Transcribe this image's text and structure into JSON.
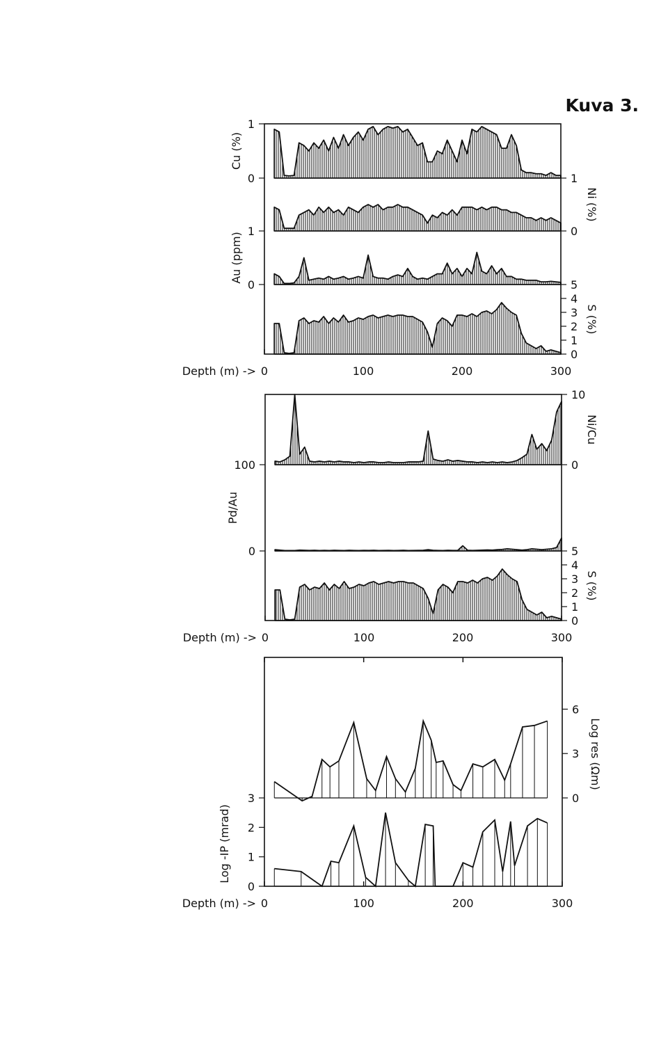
{
  "title": "Kuva 3.",
  "chart_data": [
    {
      "type": "area",
      "xlabel": "Depth (m) ->",
      "xlim": [
        0,
        300
      ],
      "xticks": [
        0,
        100,
        200,
        300
      ],
      "x": [
        10,
        15,
        20,
        25,
        30,
        35,
        40,
        45,
        50,
        55,
        60,
        65,
        70,
        75,
        80,
        85,
        90,
        95,
        100,
        105,
        110,
        115,
        120,
        125,
        130,
        135,
        140,
        145,
        150,
        155,
        160,
        165,
        170,
        175,
        180,
        185,
        190,
        195,
        200,
        205,
        210,
        215,
        220,
        225,
        230,
        235,
        240,
        245,
        250,
        255,
        260,
        265,
        270,
        275,
        280,
        285,
        290,
        295,
        300
      ],
      "series": [
        {
          "name": "Cu (%)",
          "color": "#111111",
          "ylim": [
            0,
            1
          ],
          "yticks": [
            0,
            1
          ],
          "values": [
            0.9,
            0.85,
            0.05,
            0.04,
            0.05,
            0.65,
            0.6,
            0.5,
            0.65,
            0.55,
            0.7,
            0.5,
            0.75,
            0.55,
            0.8,
            0.6,
            0.75,
            0.85,
            0.7,
            0.9,
            0.95,
            0.8,
            0.9,
            0.95,
            0.92,
            0.95,
            0.85,
            0.9,
            0.75,
            0.6,
            0.65,
            0.3,
            0.3,
            0.5,
            0.45,
            0.7,
            0.5,
            0.3,
            0.7,
            0.45,
            0.9,
            0.85,
            0.95,
            0.9,
            0.85,
            0.8,
            0.55,
            0.55,
            0.8,
            0.6,
            0.15,
            0.1,
            0.1,
            0.08,
            0.08,
            0.05,
            0.1,
            0.05,
            0.05
          ]
        },
        {
          "name": "Ni (%)",
          "color": "#111111",
          "axis": "y2",
          "ylim": [
            0,
            1
          ],
          "yticks": [
            0,
            1
          ],
          "values": [
            0.45,
            0.4,
            0.05,
            0.05,
            0.05,
            0.3,
            0.35,
            0.4,
            0.3,
            0.45,
            0.35,
            0.45,
            0.35,
            0.4,
            0.3,
            0.45,
            0.4,
            0.35,
            0.45,
            0.5,
            0.45,
            0.5,
            0.4,
            0.45,
            0.45,
            0.5,
            0.45,
            0.45,
            0.4,
            0.35,
            0.3,
            0.15,
            0.3,
            0.25,
            0.35,
            0.3,
            0.4,
            0.3,
            0.45,
            0.45,
            0.45,
            0.4,
            0.45,
            0.4,
            0.45,
            0.45,
            0.4,
            0.4,
            0.35,
            0.35,
            0.3,
            0.25,
            0.25,
            0.2,
            0.25,
            0.2,
            0.25,
            0.2,
            0.15
          ]
        },
        {
          "name": "Au (ppm)",
          "color": "#111111",
          "ylim": [
            0,
            1
          ],
          "yticks": [
            0,
            1
          ],
          "values": [
            0.2,
            0.15,
            0.02,
            0.02,
            0.03,
            0.15,
            0.5,
            0.08,
            0.1,
            0.12,
            0.1,
            0.15,
            0.1,
            0.12,
            0.15,
            0.1,
            0.12,
            0.15,
            0.12,
            0.55,
            0.15,
            0.12,
            0.12,
            0.1,
            0.15,
            0.18,
            0.15,
            0.3,
            0.15,
            0.1,
            0.12,
            0.1,
            0.15,
            0.2,
            0.2,
            0.4,
            0.2,
            0.3,
            0.15,
            0.3,
            0.2,
            0.6,
            0.25,
            0.2,
            0.35,
            0.2,
            0.3,
            0.15,
            0.15,
            0.1,
            0.1,
            0.08,
            0.08,
            0.08,
            0.05,
            0.05,
            0.06,
            0.05,
            0.04
          ]
        },
        {
          "name": "S (%)",
          "color": "#111111",
          "axis": "y2",
          "ylim": [
            0,
            5
          ],
          "yticks": [
            0,
            1,
            2,
            3,
            4,
            5
          ],
          "values": [
            2.2,
            2.2,
            0.1,
            0.05,
            0.1,
            2.4,
            2.6,
            2.2,
            2.4,
            2.3,
            2.7,
            2.2,
            2.6,
            2.3,
            2.8,
            2.3,
            2.4,
            2.6,
            2.5,
            2.7,
            2.8,
            2.6,
            2.7,
            2.8,
            2.7,
            2.8,
            2.8,
            2.7,
            2.7,
            2.5,
            2.3,
            1.6,
            0.5,
            2.2,
            2.6,
            2.4,
            2.0,
            2.8,
            2.8,
            2.7,
            2.9,
            2.7,
            3.0,
            3.1,
            2.9,
            3.2,
            3.7,
            3.3,
            3.0,
            2.8,
            1.5,
            0.8,
            0.6,
            0.4,
            0.6,
            0.2,
            0.3,
            0.2,
            0.1
          ]
        }
      ]
    },
    {
      "type": "area",
      "xlabel": "Depth (m) ->",
      "xlim": [
        0,
        300
      ],
      "xticks": [
        0,
        100,
        200,
        300
      ],
      "x": [
        10,
        15,
        20,
        25,
        30,
        35,
        40,
        45,
        50,
        55,
        60,
        65,
        70,
        75,
        80,
        85,
        90,
        95,
        100,
        105,
        110,
        115,
        120,
        125,
        130,
        135,
        140,
        145,
        150,
        155,
        160,
        165,
        170,
        175,
        180,
        185,
        190,
        195,
        200,
        205,
        210,
        215,
        220,
        225,
        230,
        235,
        240,
        245,
        250,
        255,
        260,
        265,
        270,
        275,
        280,
        285,
        290,
        295,
        300
      ],
      "series": [
        {
          "name": "Ni/Cu",
          "color": "#111111",
          "axis": "y2",
          "ylim": [
            0,
            10
          ],
          "yticks": [
            0,
            10
          ],
          "values": [
            0.5,
            0.4,
            0.7,
            1.2,
            10,
            1.5,
            2.5,
            0.5,
            0.4,
            0.5,
            0.4,
            0.5,
            0.4,
            0.5,
            0.4,
            0.4,
            0.3,
            0.4,
            0.3,
            0.4,
            0.4,
            0.3,
            0.3,
            0.4,
            0.3,
            0.3,
            0.3,
            0.4,
            0.4,
            0.4,
            0.5,
            4.8,
            0.8,
            0.6,
            0.5,
            0.7,
            0.5,
            0.6,
            0.5,
            0.4,
            0.4,
            0.3,
            0.4,
            0.3,
            0.4,
            0.3,
            0.4,
            0.3,
            0.4,
            0.6,
            1.0,
            1.5,
            4.3,
            2.2,
            3.0,
            2.0,
            3.5,
            7.5,
            9.0
          ]
        },
        {
          "name": "Pd/Au",
          "color": "#111111",
          "ylim": [
            0,
            100
          ],
          "yticks": [
            0,
            100
          ],
          "values": [
            1.5,
            1,
            0.5,
            0.5,
            0.5,
            1,
            0.8,
            0.6,
            0.8,
            0.5,
            0.7,
            0.5,
            0.8,
            0.6,
            0.5,
            0.8,
            0.6,
            0.5,
            0.7,
            0.6,
            0.8,
            0.5,
            0.6,
            0.7,
            0.5,
            0.6,
            0.8,
            0.5,
            0.6,
            0.7,
            0.8,
            1.5,
            0.8,
            0.6,
            0.5,
            0.8,
            0.6,
            0.7,
            6,
            0.8,
            0.6,
            0.8,
            1,
            1.2,
            1,
            1.5,
            1.8,
            2.5,
            2,
            1.5,
            1,
            1.5,
            2.5,
            2,
            1.5,
            2,
            2.5,
            4,
            15
          ]
        },
        {
          "name": "S (%)",
          "color": "#111111",
          "axis": "y2",
          "ylim": [
            0,
            5
          ],
          "yticks": [
            0,
            1,
            2,
            3,
            4,
            5
          ],
          "values": [
            2.2,
            2.2,
            0.1,
            0.05,
            0.1,
            2.4,
            2.6,
            2.2,
            2.4,
            2.3,
            2.7,
            2.2,
            2.6,
            2.3,
            2.8,
            2.3,
            2.4,
            2.6,
            2.5,
            2.7,
            2.8,
            2.6,
            2.7,
            2.8,
            2.7,
            2.8,
            2.8,
            2.7,
            2.7,
            2.5,
            2.3,
            1.6,
            0.5,
            2.2,
            2.6,
            2.4,
            2.0,
            2.8,
            2.8,
            2.7,
            2.9,
            2.7,
            3.0,
            3.1,
            2.9,
            3.2,
            3.7,
            3.3,
            3.0,
            2.8,
            1.5,
            0.8,
            0.6,
            0.4,
            0.6,
            0.2,
            0.3,
            0.2,
            0.1
          ]
        }
      ]
    },
    {
      "type": "stem",
      "xlabel": "Depth (m) ->",
      "xlim": [
        0,
        300
      ],
      "xticks": [
        0,
        100,
        200,
        300
      ],
      "series": [
        {
          "name": "Log res (Ωm)",
          "color": "#111111",
          "axis": "y2",
          "ylim": [
            0,
            9.5
          ],
          "yticks": [
            0,
            3,
            6
          ],
          "x": [
            10,
            38,
            48,
            58,
            66,
            75,
            90,
            103,
            112,
            123,
            132,
            142,
            152,
            160,
            168,
            173,
            180,
            190,
            198,
            210,
            220,
            232,
            242,
            248,
            260,
            272,
            285
          ],
          "values": [
            1.1,
            -0.2,
            0.1,
            2.6,
            2.1,
            2.5,
            5.1,
            1.3,
            0.5,
            2.8,
            1.3,
            0.4,
            2.0,
            5.2,
            3.9,
            2.4,
            2.5,
            0.9,
            0.5,
            2.3,
            2.1,
            2.6,
            1.2,
            2.3,
            4.8,
            4.9,
            5.2
          ]
        },
        {
          "name": "Log -IP (mrad)",
          "color": "#111111",
          "ylim": [
            0,
            3
          ],
          "yticks": [
            0,
            1,
            2,
            3
          ],
          "x": [
            10,
            37,
            58,
            67,
            75,
            90,
            102,
            112,
            122,
            132,
            145,
            152,
            162,
            170,
            172,
            190,
            200,
            210,
            220,
            232,
            240,
            248,
            252,
            265,
            275,
            285
          ],
          "values": [
            0.6,
            0.5,
            0,
            0.85,
            0.8,
            2.05,
            0.3,
            0,
            2.5,
            0.8,
            0.2,
            0,
            2.1,
            2.05,
            0,
            0,
            0.8,
            0.65,
            1.85,
            2.25,
            0.5,
            2.2,
            0.7,
            2.05,
            2.3,
            2.15
          ]
        }
      ]
    }
  ]
}
